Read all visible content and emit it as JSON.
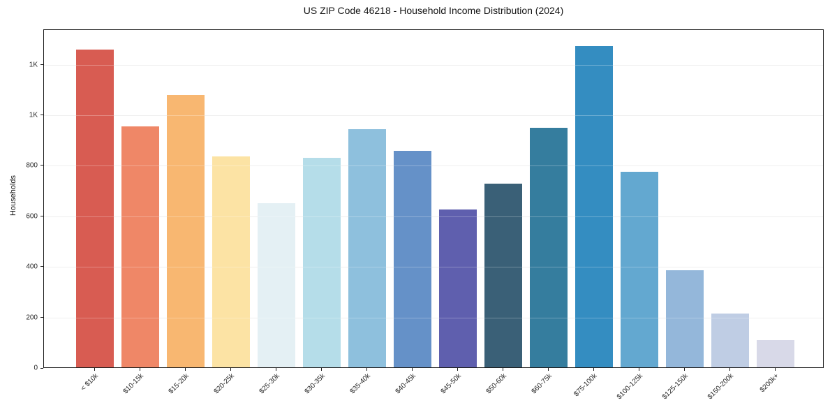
{
  "title": "US ZIP Code 46218 - Household Income Distribution (2024)",
  "chart_data": {
    "type": "bar",
    "title": "US ZIP Code 46218 - Household Income Distribution (2024)",
    "xlabel": "",
    "ylabel": "Households",
    "categories": [
      "< $10k",
      "$10-15k",
      "$15-20k",
      "$20-25k",
      "$25-30k",
      "$30-35k",
      "$35-40k",
      "$40-45k",
      "$45-50k",
      "$50-60k",
      "$60-75k",
      "$75-100k",
      "$100-125k",
      "$125-150k",
      "$150-200k",
      "$200k+"
    ],
    "values": [
      1257,
      952,
      1078,
      835,
      650,
      828,
      943,
      858,
      625,
      726,
      947,
      1270,
      773,
      383,
      213,
      107
    ],
    "bar_colors": [
      "#d85c52",
      "#ef8767",
      "#f8b771",
      "#fce3a4",
      "#e4f0f4",
      "#b5dde9",
      "#8ec0dd",
      "#6591c8",
      "#5f5fae",
      "#3a6077",
      "#357d9e",
      "#348dc1",
      "#63a8d0",
      "#94b7da",
      "#bfcde4",
      "#d8d9e8"
    ],
    "ylim": [
      0,
      1340
    ],
    "yticks": {
      "values": [
        0,
        200,
        400,
        600,
        800,
        1000,
        1200
      ],
      "labels": [
        "0",
        "200",
        "400",
        "600",
        "800",
        "1K",
        "1K"
      ]
    },
    "grid": "horizontal",
    "legend": "none"
  }
}
